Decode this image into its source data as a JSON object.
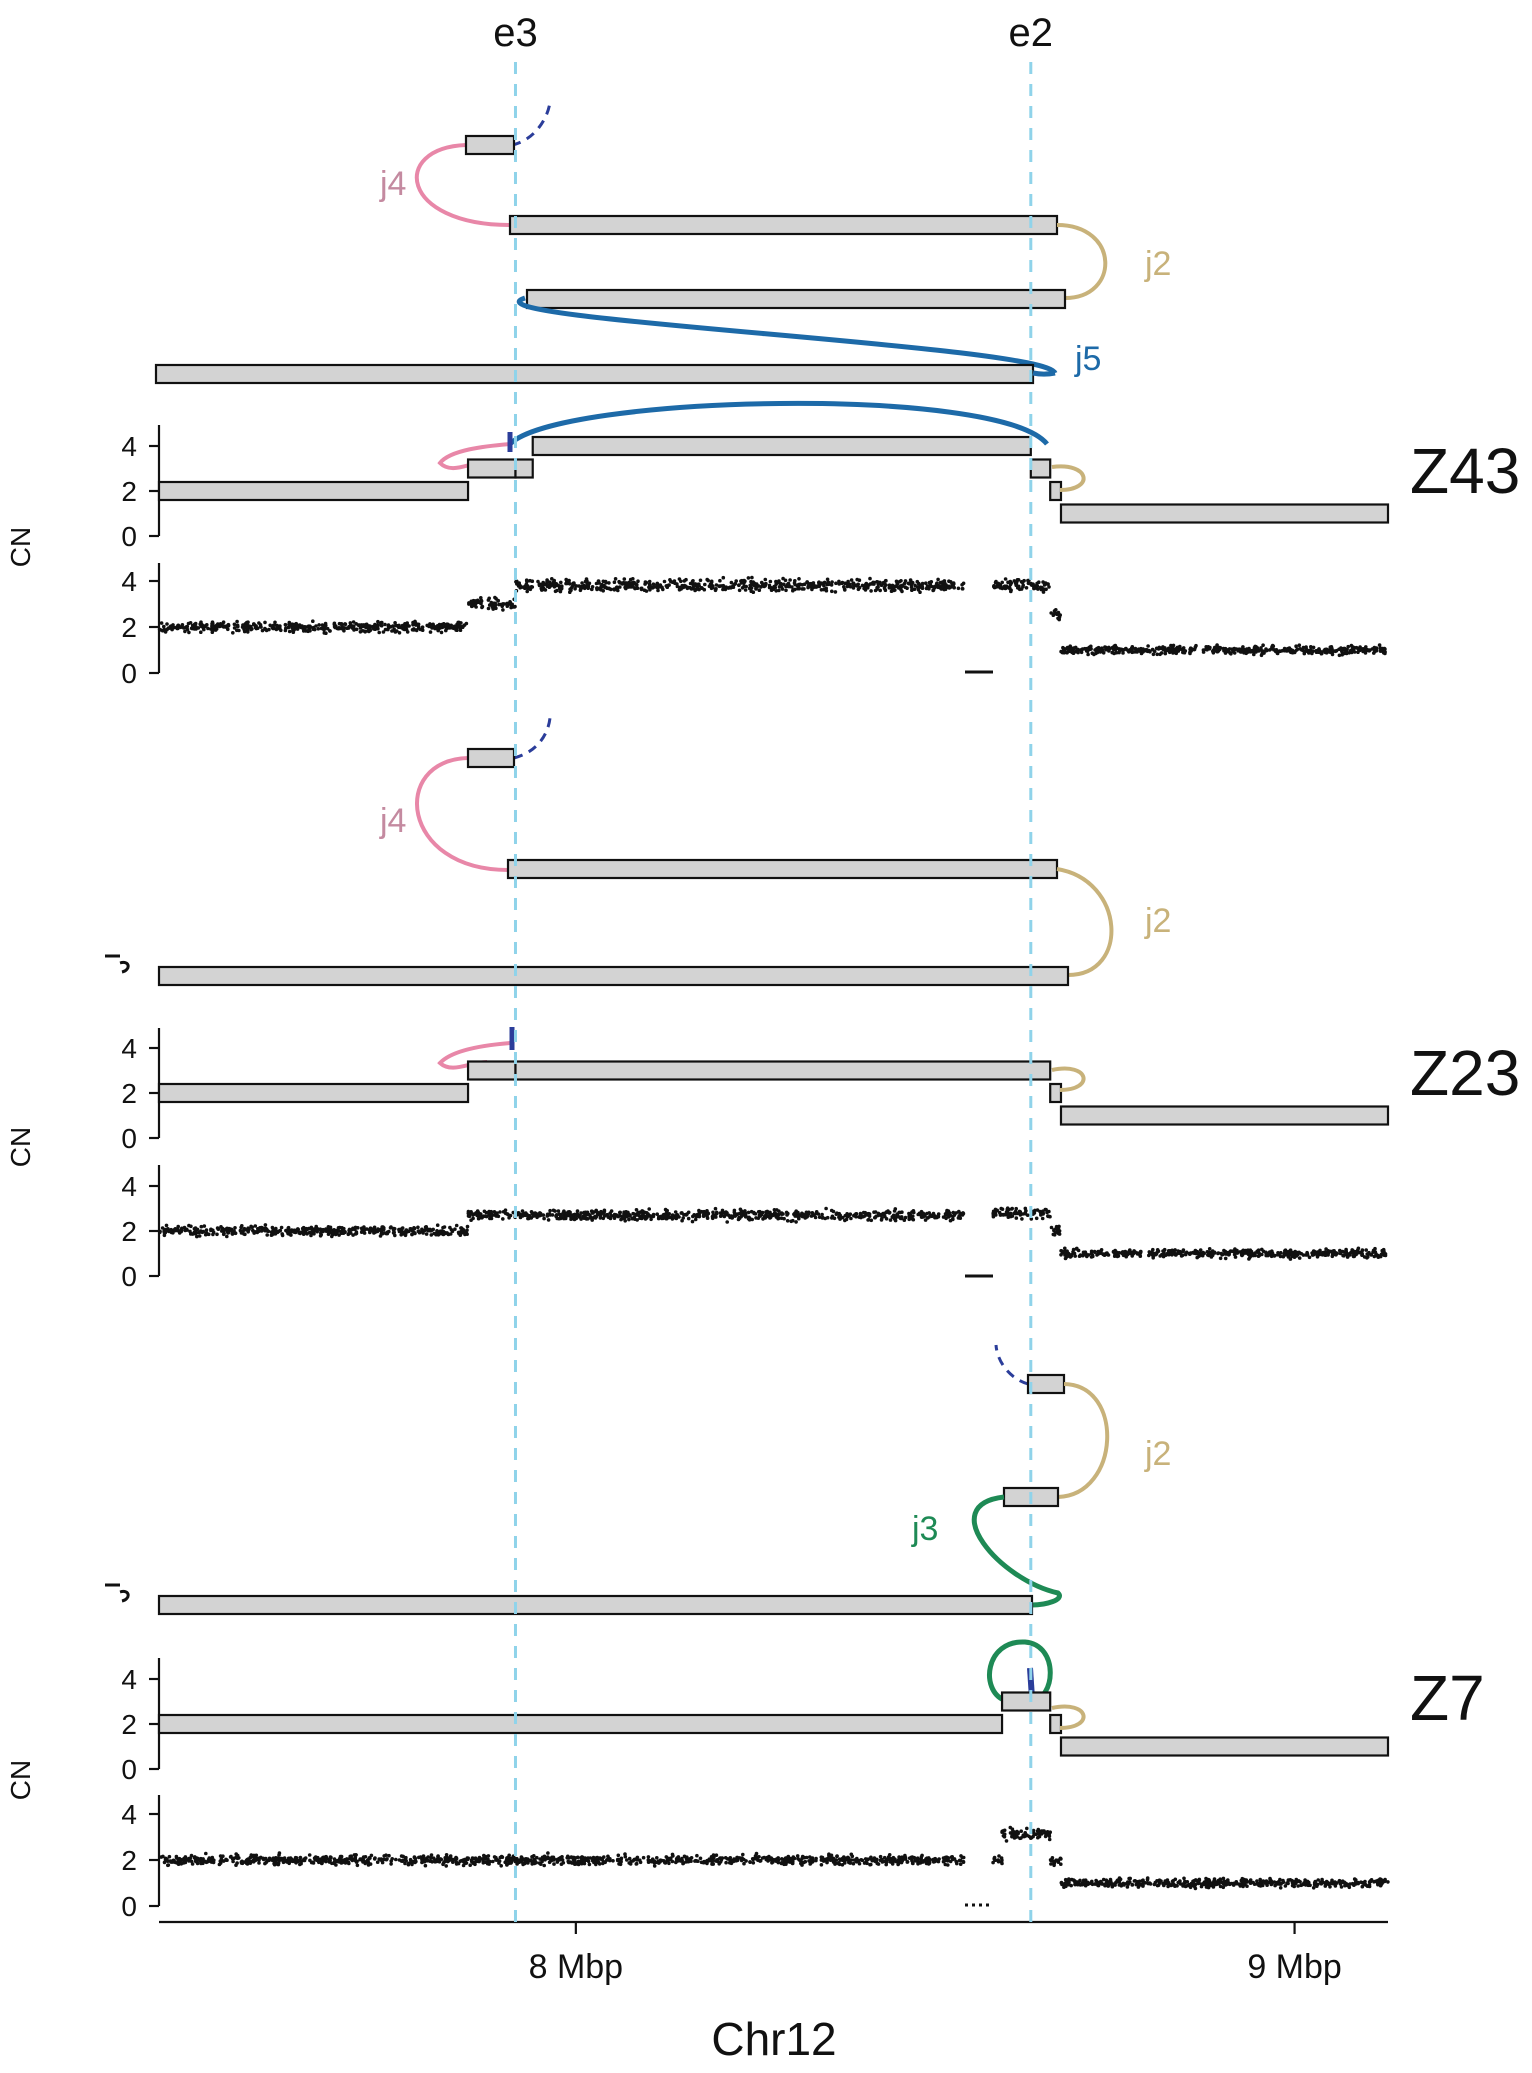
{
  "markers": [
    {
      "label": "e3",
      "pos": 7.916
    },
    {
      "label": "e2",
      "pos": 8.633
    }
  ],
  "x_axis": {
    "title": "Chr12",
    "range": [
      7.42,
      9.13
    ],
    "ticks": [
      {
        "value": 8.0,
        "label": "8 Mbp"
      },
      {
        "value": 9.0,
        "label": "9 Mbp"
      }
    ]
  },
  "colors": {
    "j2": "#c8b27a",
    "j3": "#1e8a55",
    "j4": "#e887a8",
    "j5": "#1d6aa8",
    "partner": "#2b3d9a",
    "edge_marker": "#8fd3ea",
    "segment_fill": "#d3d3d3"
  },
  "panels": [
    {
      "name": "Z43",
      "cn_axis_label": "CN",
      "cn_ticks": [
        "0",
        "2",
        "4"
      ],
      "junction_labels": [
        {
          "id": "j4",
          "text": "j4",
          "color": "#c48aa0"
        },
        {
          "id": "j2",
          "text": "j2",
          "color": "#c8b27a"
        },
        {
          "id": "j5",
          "text": "j5",
          "color": "#1d6aa8"
        }
      ],
      "copy_number_segments": [
        {
          "start": 7.42,
          "end": 7.85,
          "cn": 2
        },
        {
          "start": 7.85,
          "end": 7.916,
          "cn": 3
        },
        {
          "start": 7.916,
          "end": 7.94,
          "cn": 3
        },
        {
          "start": 7.94,
          "end": 8.633,
          "cn": 4
        },
        {
          "start": 8.633,
          "end": 8.66,
          "cn": 3
        },
        {
          "start": 8.66,
          "end": 8.675,
          "cn": 2
        },
        {
          "start": 8.675,
          "end": 9.13,
          "cn": 1
        }
      ],
      "coverage_levels": [
        {
          "start": 7.42,
          "end": 7.85,
          "cn": 2
        },
        {
          "start": 7.85,
          "end": 7.916,
          "cn": 3
        },
        {
          "start": 7.916,
          "end": 8.54,
          "cn": 3.8
        },
        {
          "start": 8.58,
          "end": 8.66,
          "cn": 3.8
        },
        {
          "start": 8.66,
          "end": 8.675,
          "cn": 2.5
        },
        {
          "start": 8.675,
          "end": 9.13,
          "cn": 1
        }
      ]
    },
    {
      "name": "Z23",
      "cn_axis_label": "CN",
      "cn_ticks": [
        "0",
        "2",
        "4"
      ],
      "junction_labels": [
        {
          "id": "j4",
          "text": "j4",
          "color": "#c48aa0"
        },
        {
          "id": "j2",
          "text": "j2",
          "color": "#c8b27a"
        }
      ],
      "copy_number_segments": [
        {
          "start": 7.42,
          "end": 7.85,
          "cn": 2
        },
        {
          "start": 7.85,
          "end": 7.916,
          "cn": 3
        },
        {
          "start": 7.916,
          "end": 8.66,
          "cn": 3
        },
        {
          "start": 8.66,
          "end": 8.675,
          "cn": 2
        },
        {
          "start": 8.675,
          "end": 9.13,
          "cn": 1
        }
      ],
      "coverage_levels": [
        {
          "start": 7.42,
          "end": 7.85,
          "cn": 2
        },
        {
          "start": 7.85,
          "end": 8.54,
          "cn": 2.7
        },
        {
          "start": 8.58,
          "end": 8.66,
          "cn": 2.8
        },
        {
          "start": 8.66,
          "end": 8.675,
          "cn": 2
        },
        {
          "start": 8.675,
          "end": 9.13,
          "cn": 1
        }
      ]
    },
    {
      "name": "Z7",
      "cn_axis_label": "CN",
      "cn_ticks": [
        "0",
        "2",
        "4"
      ],
      "junction_labels": [
        {
          "id": "j2",
          "text": "j2",
          "color": "#c8b27a"
        },
        {
          "id": "j3",
          "text": "j3",
          "color": "#1e8a55"
        }
      ],
      "copy_number_segments": [
        {
          "start": 7.42,
          "end": 8.593,
          "cn": 2
        },
        {
          "start": 8.593,
          "end": 8.66,
          "cn": 3
        },
        {
          "start": 8.66,
          "end": 8.675,
          "cn": 2
        },
        {
          "start": 8.675,
          "end": 9.13,
          "cn": 1
        }
      ],
      "coverage_levels": [
        {
          "start": 7.42,
          "end": 8.54,
          "cn": 2
        },
        {
          "start": 8.58,
          "end": 8.593,
          "cn": 2
        },
        {
          "start": 8.593,
          "end": 8.66,
          "cn": 3.1
        },
        {
          "start": 8.66,
          "end": 8.675,
          "cn": 2
        },
        {
          "start": 8.675,
          "end": 9.13,
          "cn": 1
        }
      ]
    }
  ]
}
